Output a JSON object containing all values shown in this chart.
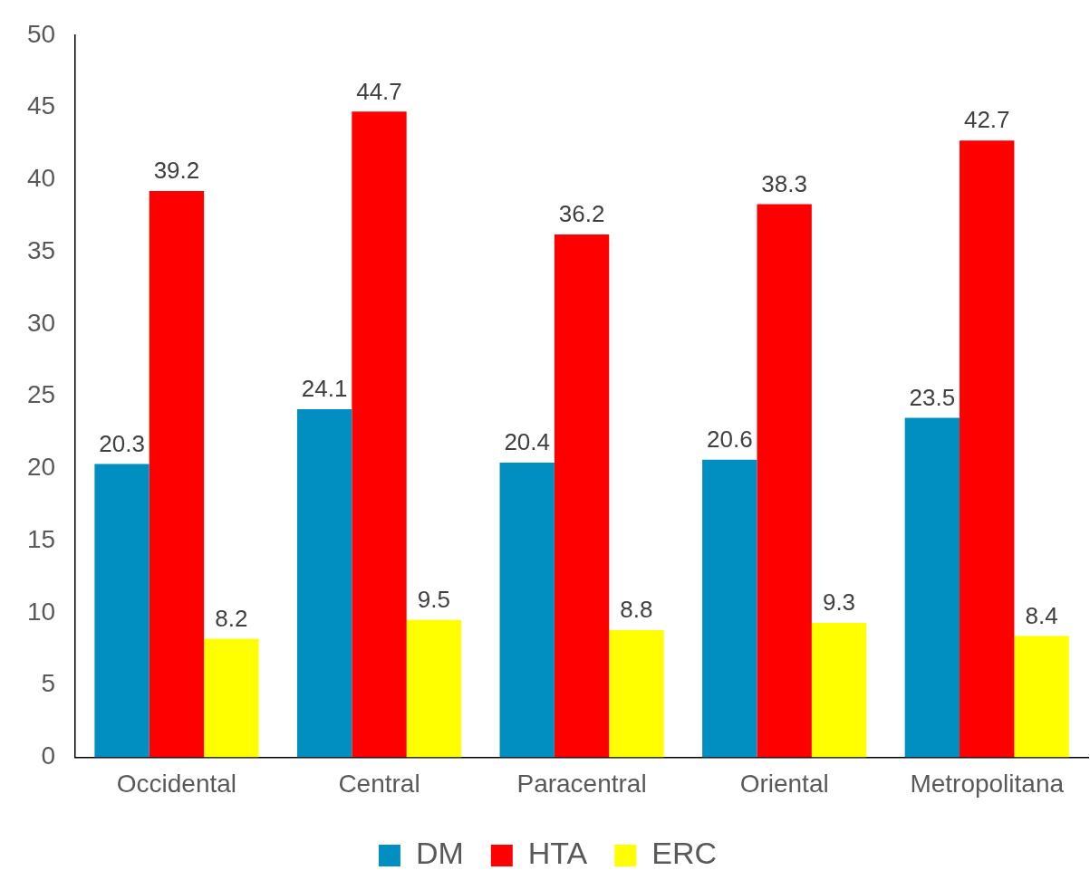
{
  "chart_data": {
    "type": "bar",
    "categories": [
      "Occidental",
      "Central",
      "Paracentral",
      "Oriental",
      "Metropolitana"
    ],
    "series": [
      {
        "name": "DM",
        "color": "#008fc0",
        "values": [
          20.3,
          24.1,
          20.4,
          20.6,
          23.5
        ]
      },
      {
        "name": "HTA",
        "color": "#ff0000",
        "values": [
          39.2,
          44.7,
          36.2,
          38.3,
          42.7
        ]
      },
      {
        "name": "ERC",
        "color": "#ffff00",
        "values": [
          8.2,
          9.5,
          8.8,
          9.3,
          8.4
        ]
      }
    ],
    "ylim": [
      0,
      50
    ],
    "yticks": [
      0,
      5,
      10,
      15,
      20,
      25,
      30,
      35,
      40,
      45,
      50
    ],
    "grid": false,
    "legend": "bottom",
    "data_labels": true
  }
}
